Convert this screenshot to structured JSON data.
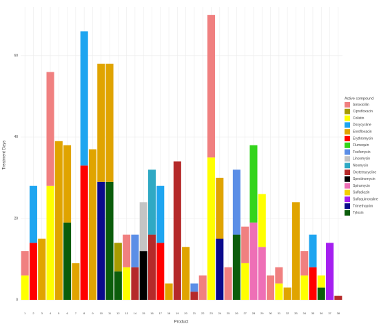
{
  "chart_data": {
    "type": "stacked_bar",
    "x_label": "Product",
    "y_label": "Treatment Days",
    "legend_title": "Active compound",
    "legend": "right",
    "grid": true,
    "categories": [
      "1",
      "2",
      "3",
      "4",
      "5",
      "6",
      "7",
      "8",
      "9",
      "10",
      "11",
      "12",
      "13",
      "14",
      "15",
      "16",
      "17",
      "18",
      "19",
      "20",
      "21",
      "22",
      "23",
      "24",
      "25",
      "26",
      "27",
      "28",
      "29",
      "30",
      "31",
      "32",
      "33",
      "34",
      "35",
      "36",
      "37",
      "38"
    ],
    "ylim": [
      0,
      72
    ],
    "yticks": [
      0,
      20,
      40,
      60
    ],
    "series": [
      {
        "name": "Amoxicillin",
        "color": "#f08080",
        "values": [
          6,
          null,
          null,
          28,
          null,
          null,
          null,
          null,
          null,
          null,
          null,
          null,
          8,
          null,
          null,
          null,
          null,
          null,
          null,
          null,
          null,
          6,
          35,
          null,
          8,
          null,
          9,
          null,
          null,
          6,
          4,
          null,
          null,
          6,
          null,
          null,
          null,
          null
        ]
      },
      {
        "name": "Ciprofloxacin",
        "color": "#a69b00",
        "values": [
          null,
          null,
          null,
          null,
          null,
          null,
          null,
          null,
          null,
          null,
          null,
          7,
          null,
          null,
          null,
          null,
          null,
          null,
          null,
          null,
          null,
          null,
          null,
          null,
          null,
          null,
          null,
          null,
          null,
          null,
          null,
          null,
          null,
          null,
          null,
          null,
          null,
          null
        ]
      },
      {
        "name": "Colistin",
        "color": "#ffff00",
        "values": [
          6,
          null,
          null,
          28,
          null,
          null,
          null,
          null,
          null,
          null,
          null,
          null,
          8,
          null,
          null,
          null,
          null,
          null,
          null,
          null,
          null,
          null,
          35,
          null,
          null,
          null,
          9,
          null,
          13,
          null,
          4,
          null,
          null,
          6,
          null,
          3,
          null,
          null
        ]
      },
      {
        "name": "Doxycycline",
        "color": "#1ea5f0",
        "values": [
          null,
          14,
          null,
          null,
          null,
          null,
          null,
          33,
          null,
          null,
          null,
          null,
          null,
          null,
          null,
          null,
          14,
          null,
          null,
          null,
          null,
          null,
          null,
          null,
          null,
          null,
          null,
          null,
          null,
          null,
          null,
          null,
          null,
          null,
          8,
          null,
          null,
          null
        ]
      },
      {
        "name": "Enrofloxacin",
        "color": "#e0a400",
        "values": [
          null,
          null,
          15,
          null,
          39,
          19,
          9,
          null,
          37,
          29,
          29,
          null,
          null,
          null,
          null,
          null,
          null,
          4,
          null,
          13,
          null,
          null,
          null,
          15,
          null,
          null,
          null,
          null,
          null,
          null,
          null,
          3,
          24,
          null,
          null,
          null,
          null,
          null
        ]
      },
      {
        "name": "Erythromycin",
        "color": "#ff0000",
        "values": [
          null,
          14,
          null,
          null,
          null,
          null,
          null,
          33,
          null,
          null,
          null,
          null,
          null,
          null,
          null,
          null,
          14,
          null,
          null,
          null,
          null,
          null,
          null,
          null,
          null,
          null,
          null,
          null,
          null,
          null,
          null,
          null,
          null,
          null,
          8,
          null,
          null,
          null
        ]
      },
      {
        "name": "Flumequin",
        "color": "#33d41c",
        "values": [
          null,
          null,
          null,
          null,
          null,
          null,
          null,
          null,
          null,
          null,
          null,
          null,
          null,
          null,
          null,
          null,
          null,
          null,
          null,
          null,
          null,
          null,
          null,
          null,
          null,
          null,
          null,
          19,
          null,
          null,
          null,
          null,
          null,
          null,
          null,
          null,
          null,
          null
        ]
      },
      {
        "name": "Fosfomycin",
        "color": "#5b8ee6",
        "values": [
          null,
          null,
          null,
          null,
          null,
          null,
          null,
          null,
          null,
          null,
          null,
          null,
          null,
          8,
          null,
          null,
          null,
          null,
          null,
          null,
          2,
          null,
          null,
          null,
          null,
          16,
          null,
          null,
          null,
          null,
          null,
          null,
          null,
          null,
          null,
          null,
          null,
          null
        ]
      },
      {
        "name": "Lincomycin",
        "color": "#c4c4c4",
        "values": [
          null,
          null,
          null,
          null,
          null,
          null,
          null,
          null,
          null,
          null,
          null,
          null,
          null,
          null,
          12,
          null,
          null,
          null,
          null,
          null,
          null,
          null,
          null,
          null,
          null,
          null,
          null,
          null,
          null,
          null,
          null,
          null,
          null,
          null,
          null,
          null,
          null,
          null
        ]
      },
      {
        "name": "Neomycin",
        "color": "#2fa9c4",
        "values": [
          null,
          null,
          null,
          null,
          null,
          null,
          null,
          null,
          null,
          null,
          null,
          null,
          null,
          null,
          null,
          16,
          null,
          null,
          null,
          null,
          null,
          null,
          null,
          null,
          null,
          null,
          null,
          null,
          null,
          null,
          null,
          null,
          null,
          null,
          null,
          null,
          null,
          null
        ]
      },
      {
        "name": "Oxytetracycline",
        "color": "#b52a2a",
        "values": [
          null,
          null,
          null,
          null,
          null,
          null,
          null,
          null,
          null,
          null,
          null,
          null,
          null,
          8,
          null,
          16,
          null,
          null,
          34,
          null,
          2,
          null,
          null,
          null,
          null,
          null,
          null,
          null,
          null,
          null,
          null,
          null,
          null,
          null,
          null,
          null,
          null,
          1
        ]
      },
      {
        "name": "Spectinomycin",
        "color": "#000000",
        "values": [
          null,
          null,
          null,
          null,
          null,
          null,
          null,
          null,
          null,
          null,
          null,
          null,
          null,
          null,
          12,
          null,
          null,
          null,
          null,
          null,
          null,
          null,
          null,
          null,
          null,
          null,
          null,
          null,
          null,
          null,
          null,
          null,
          null,
          null,
          null,
          null,
          null,
          null
        ]
      },
      {
        "name": "Spiramycin",
        "color": "#ee6fb6",
        "values": [
          null,
          null,
          null,
          null,
          null,
          null,
          null,
          null,
          null,
          null,
          null,
          null,
          null,
          null,
          null,
          null,
          null,
          null,
          null,
          null,
          null,
          null,
          null,
          null,
          null,
          null,
          null,
          19,
          13,
          null,
          null,
          null,
          null,
          null,
          null,
          null,
          null,
          null
        ]
      },
      {
        "name": "Sulfadiazin",
        "color": "#f3d000",
        "values": [
          null,
          null,
          null,
          null,
          null,
          null,
          null,
          null,
          null,
          null,
          null,
          null,
          null,
          null,
          null,
          null,
          null,
          null,
          null,
          null,
          null,
          null,
          null,
          null,
          null,
          null,
          null,
          null,
          null,
          null,
          null,
          null,
          null,
          null,
          null,
          null,
          null,
          null
        ]
      },
      {
        "name": "Sulfaquinoxaline",
        "color": "#a51ff0",
        "values": [
          null,
          null,
          null,
          null,
          null,
          null,
          null,
          null,
          null,
          null,
          null,
          null,
          null,
          null,
          null,
          null,
          null,
          null,
          null,
          null,
          null,
          null,
          null,
          null,
          null,
          null,
          null,
          null,
          null,
          null,
          null,
          null,
          null,
          null,
          null,
          null,
          14,
          null
        ]
      },
      {
        "name": "Trimethoprim",
        "color": "#0a0a8c",
        "values": [
          null,
          null,
          null,
          null,
          null,
          null,
          null,
          null,
          null,
          29,
          null,
          null,
          null,
          null,
          null,
          null,
          null,
          null,
          null,
          null,
          null,
          null,
          null,
          15,
          null,
          null,
          null,
          null,
          null,
          null,
          null,
          null,
          null,
          null,
          null,
          null,
          null,
          null
        ]
      },
      {
        "name": "Tylosin",
        "color": "#0b5d0b",
        "values": [
          null,
          null,
          null,
          null,
          null,
          19,
          null,
          null,
          null,
          null,
          29,
          7,
          null,
          null,
          null,
          null,
          null,
          null,
          null,
          null,
          null,
          null,
          null,
          null,
          null,
          16,
          null,
          null,
          null,
          null,
          null,
          null,
          null,
          null,
          null,
          3,
          null,
          null
        ]
      }
    ]
  }
}
